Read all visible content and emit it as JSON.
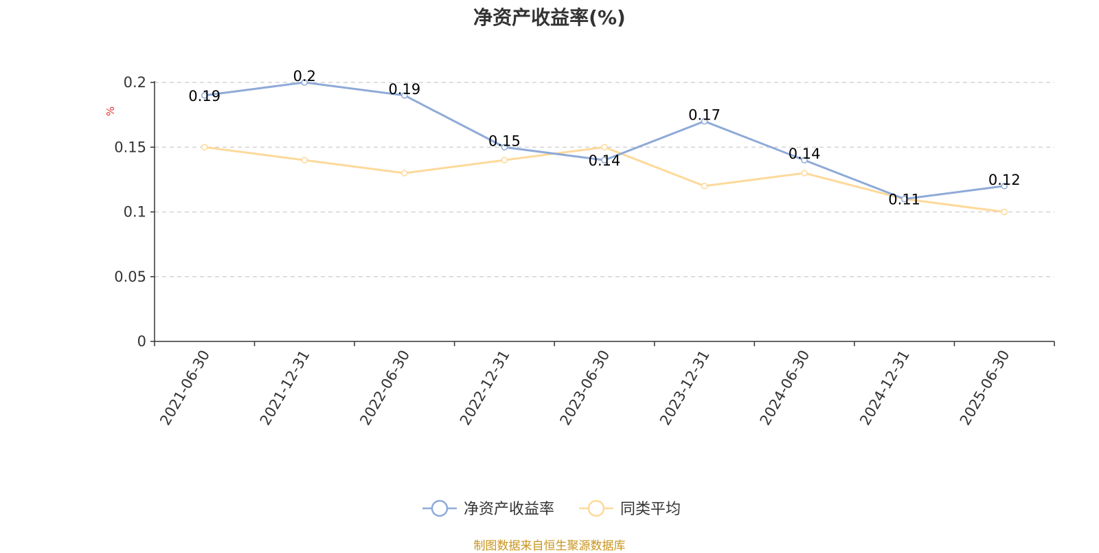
{
  "chart_data": {
    "type": "line",
    "title": "净资产收益率(%)",
    "ylabel": "%",
    "ylim": [
      0,
      0.2
    ],
    "yticks": [
      "0",
      "0.05",
      "0.1",
      "0.15",
      "0.2"
    ],
    "grid": true,
    "legend_position": "bottom-center",
    "categories": [
      "2021-06-30",
      "2021-12-31",
      "2022-06-30",
      "2022-12-31",
      "2023-06-30",
      "2023-12-31",
      "2024-06-30",
      "2024-12-31",
      "2025-06-30"
    ],
    "series": [
      {
        "name": "净资产收益率",
        "color": "#8eaad8",
        "values": [
          0.19,
          0.2,
          0.19,
          0.15,
          0.14,
          0.17,
          0.14,
          0.11,
          0.12
        ],
        "labels": [
          "0.19",
          "0.2",
          "0.19",
          "0.15",
          "0.14",
          "0.17",
          "0.14",
          "0.11",
          "0.12"
        ]
      },
      {
        "name": "同类平均",
        "color": "#fdd99a",
        "values": [
          0.15,
          0.14,
          0.13,
          0.14,
          0.15,
          0.12,
          0.13,
          0.11,
          0.1
        ]
      }
    ],
    "source": "制图数据来自恒生聚源数据库"
  }
}
